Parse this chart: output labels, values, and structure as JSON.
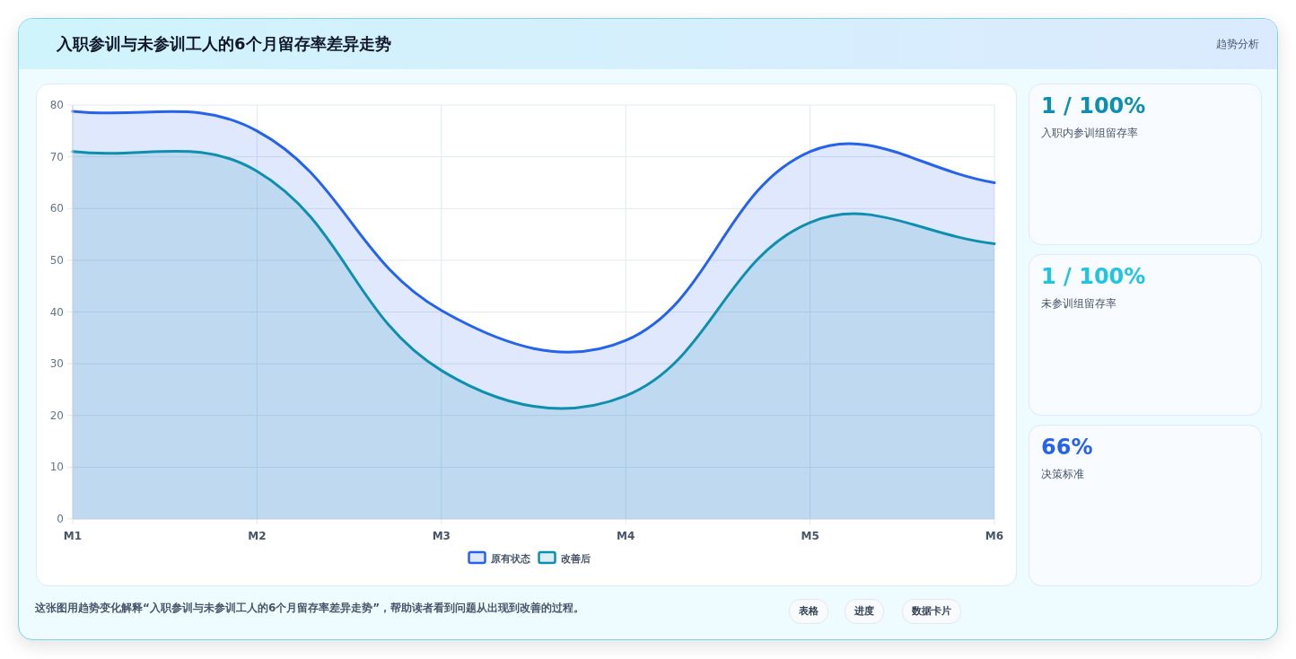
{
  "chart_data": [
    {
      "type": "area",
      "title": "入职参训与未参训工人的6个月留存率差异走势",
      "categories": [
        "M1",
        "M2",
        "M3",
        "M4",
        "M5",
        "M6"
      ],
      "series": [
        {
          "name": "原有状态",
          "color": "#2563eb",
          "values": [
            78.8,
            75,
            40.3,
            34.5,
            71,
            65
          ]
        },
        {
          "name": "改善后",
          "color": "#0e8fb0",
          "values": [
            71,
            67.2,
            28.7,
            23.8,
            57.3,
            53.2
          ]
        }
      ],
      "ylim": [
        0,
        80
      ],
      "yticks": [
        0,
        10,
        20,
        30,
        40,
        50,
        60,
        70,
        80
      ],
      "grid": true,
      "legend": "bottom",
      "marker": "none",
      "line_style": "solid",
      "annotations": [
        "趋势分析",
        "这张图用趋势变化解释“入职参训与未参训工人的6个月留存率差异走势”，帮助读者看到问题从出现到改善的过程。",
        "表格",
        "进度",
        "数据卡片"
      ]
    },
    {
      "type": "other",
      "annotations": [
        "1 / 100%",
        "入职内参训组留存率",
        "1 / 100%",
        "未参训组留存率",
        "66%",
        "决策标准"
      ]
    }
  ]
}
